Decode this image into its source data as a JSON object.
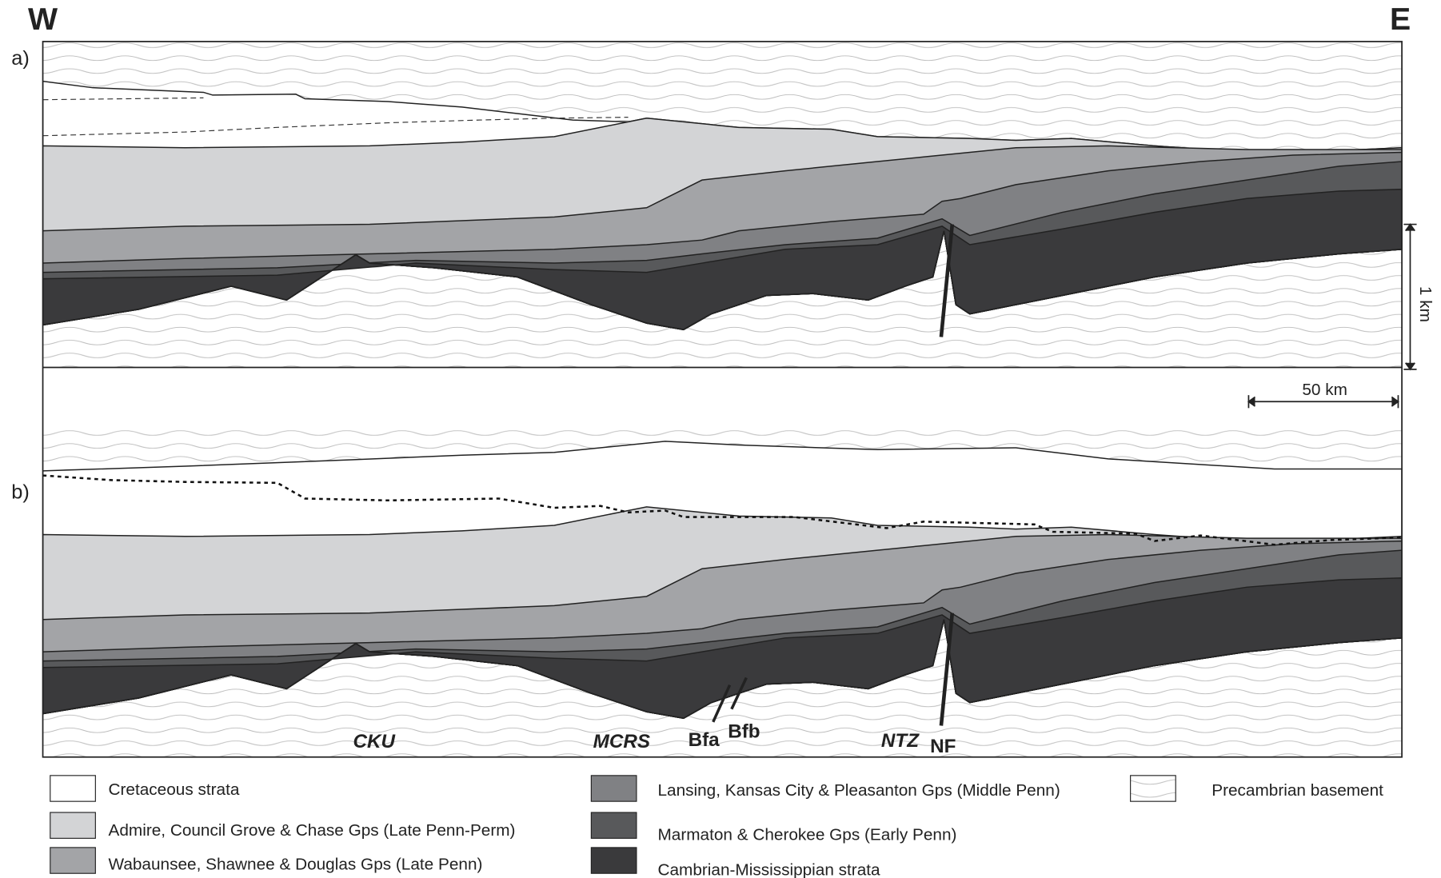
{
  "header": {
    "west": "W",
    "east": "E"
  },
  "panels": [
    {
      "label": "a)"
    },
    {
      "label": "b)"
    }
  ],
  "scale": {
    "vertical": "1 km",
    "horizontal": "50 km"
  },
  "annotations": {
    "cku": "CKU",
    "mcrs": "MCRS",
    "bfa": "Bfa",
    "bfb": "Bfb",
    "ntz": "NTZ",
    "nf": "NF"
  },
  "legend": [
    {
      "label": "Cretaceous strata"
    },
    {
      "label": "Admire, Council Grove & Chase Gps (Late Penn-Perm)"
    },
    {
      "label": "Wabaunsee, Shawnee & Douglas Gps (Late Penn)"
    },
    {
      "label": "Lansing, Kansas City & Pleasanton Gps (Middle Penn)"
    },
    {
      "label": "Marmaton & Cherokee Gps (Early Penn)"
    },
    {
      "label": "Cambrian-Mississippian strata"
    },
    {
      "label": "Precambrian basement"
    }
  ]
}
